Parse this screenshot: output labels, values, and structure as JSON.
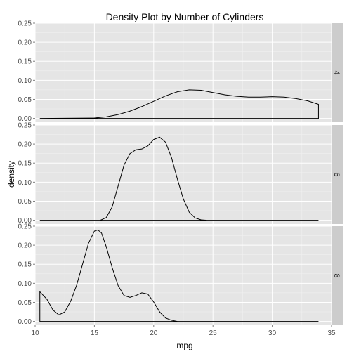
{
  "chart_data": {
    "type": "area",
    "title": "Density Plot by Number of Cylinders",
    "xlabel": "mpg",
    "ylabel": "density",
    "xlim": [
      10,
      35
    ],
    "ylim": [
      -0.01,
      0.25
    ],
    "x_ticks": [
      10,
      15,
      20,
      25,
      30,
      35
    ],
    "y_ticks": [
      0.0,
      0.05,
      0.1,
      0.15,
      0.2,
      0.25
    ],
    "y_tick_labels": [
      "0.00",
      "0.05",
      "0.10",
      "0.15",
      "0.20",
      "0.25"
    ],
    "grid": true,
    "facets": [
      {
        "label": "4",
        "x": [
          10.4,
          15.0,
          16.0,
          17.0,
          18.0,
          19.0,
          20.0,
          21.0,
          22.0,
          23.0,
          24.0,
          25.0,
          26.0,
          27.0,
          28.0,
          29.0,
          30.0,
          31.0,
          32.0,
          33.0,
          33.9
        ],
        "y": [
          0.0,
          0.001,
          0.004,
          0.01,
          0.019,
          0.031,
          0.045,
          0.059,
          0.07,
          0.075,
          0.074,
          0.068,
          0.062,
          0.058,
          0.056,
          0.056,
          0.057,
          0.056,
          0.052,
          0.046,
          0.037
        ]
      },
      {
        "label": "6",
        "x": [
          10.4,
          15.5,
          16.0,
          16.5,
          17.0,
          17.5,
          18.0,
          18.5,
          19.0,
          19.5,
          20.0,
          20.5,
          21.0,
          21.5,
          22.0,
          22.5,
          23.0,
          23.5,
          24.0,
          24.5,
          33.9
        ],
        "y": [
          0.0,
          0.0,
          0.007,
          0.035,
          0.09,
          0.145,
          0.175,
          0.185,
          0.187,
          0.195,
          0.212,
          0.218,
          0.205,
          0.165,
          0.108,
          0.056,
          0.021,
          0.006,
          0.001,
          0.0,
          0.0
        ]
      },
      {
        "label": "8",
        "x": [
          10.4,
          11.0,
          11.5,
          12.0,
          12.5,
          13.0,
          13.5,
          14.0,
          14.5,
          15.0,
          15.3,
          15.6,
          16.0,
          16.5,
          17.0,
          17.5,
          18.0,
          18.5,
          19.0,
          19.5,
          20.0,
          20.5,
          21.0,
          21.5,
          22.0,
          33.9
        ],
        "y": [
          0.078,
          0.058,
          0.03,
          0.017,
          0.025,
          0.053,
          0.095,
          0.15,
          0.205,
          0.237,
          0.24,
          0.232,
          0.196,
          0.141,
          0.094,
          0.068,
          0.063,
          0.068,
          0.075,
          0.072,
          0.051,
          0.025,
          0.009,
          0.003,
          0.0,
          0.0
        ]
      }
    ]
  }
}
